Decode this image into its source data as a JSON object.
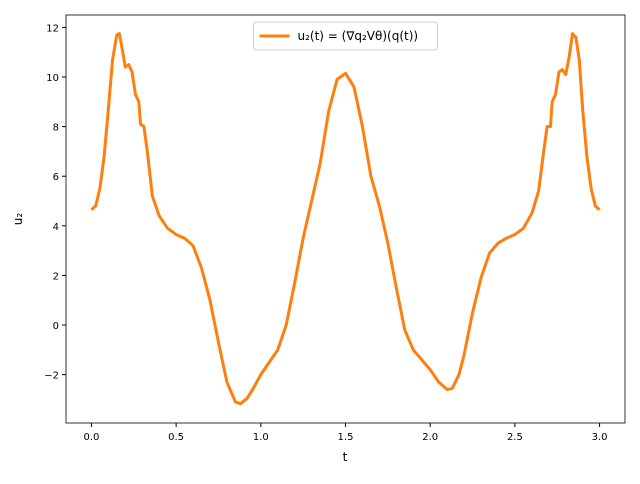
{
  "chart_data": {
    "type": "line",
    "xlabel": "t",
    "ylabel": "u₂",
    "legend_position": "upper center",
    "x": [
      0,
      0.025,
      0.05,
      0.075,
      0.1,
      0.125,
      0.15,
      0.165,
      0.18,
      0.2,
      0.22,
      0.24,
      0.26,
      0.28,
      0.29,
      0.31,
      0.33,
      0.36,
      0.4,
      0.45,
      0.5,
      0.55,
      0.6,
      0.65,
      0.7,
      0.75,
      0.8,
      0.85,
      0.88,
      0.92,
      0.96,
      1.0,
      1.05,
      1.1,
      1.15,
      1.2,
      1.25,
      1.3,
      1.35,
      1.4,
      1.45,
      1.5,
      1.55,
      1.6,
      1.65,
      1.7,
      1.75,
      1.8,
      1.85,
      1.9,
      1.95,
      2.0,
      2.05,
      2.1,
      2.13,
      2.17,
      2.2,
      2.25,
      2.3,
      2.35,
      2.4,
      2.45,
      2.5,
      2.55,
      2.6,
      2.64,
      2.67,
      2.69,
      2.71,
      2.72,
      2.74,
      2.76,
      2.78,
      2.8,
      2.82,
      2.84,
      2.86,
      2.88,
      2.9,
      2.925,
      2.95,
      2.975,
      3.0
    ],
    "series": [
      {
        "name": "u₂(t) = (∇q₂Vθ)(q(t))",
        "color": "#ff7f0e",
        "values": [
          4.65,
          4.8,
          5.5,
          6.8,
          8.7,
          10.7,
          11.7,
          11.75,
          11.2,
          10.4,
          10.5,
          10.2,
          9.3,
          9.0,
          8.1,
          8.0,
          7.0,
          5.2,
          4.4,
          3.9,
          3.65,
          3.5,
          3.2,
          2.3,
          1.0,
          -0.7,
          -2.3,
          -3.1,
          -3.17,
          -2.95,
          -2.5,
          -2.0,
          -1.5,
          -1.0,
          0.0,
          1.7,
          3.5,
          5.0,
          6.5,
          8.6,
          9.9,
          10.15,
          9.6,
          8.0,
          6.0,
          4.8,
          3.3,
          1.5,
          -0.2,
          -1.0,
          -1.4,
          -1.8,
          -2.3,
          -2.6,
          -2.55,
          -2.0,
          -1.2,
          0.5,
          1.9,
          2.9,
          3.3,
          3.5,
          3.65,
          3.9,
          4.5,
          5.4,
          7.0,
          8.0,
          8.0,
          9.0,
          9.3,
          10.2,
          10.3,
          10.1,
          10.8,
          11.75,
          11.6,
          10.7,
          8.7,
          6.8,
          5.5,
          4.8,
          4.65
        ]
      }
    ],
    "xlim": [
      -0.15,
      3.15
    ],
    "xticks": [
      {
        "value": 0,
        "label": "0.0"
      },
      0.5,
      {
        "value": 1,
        "label": "1.0"
      },
      1.5,
      {
        "value": 2,
        "label": "2.0"
      },
      2.5,
      {
        "value": 3,
        "label": "3.0"
      }
    ],
    "ylim": [
      -3.95,
      12.5
    ],
    "yticks": [
      {
        "value": -2,
        "label": "−2"
      },
      0,
      2,
      4,
      6,
      8,
      10,
      12
    ]
  }
}
